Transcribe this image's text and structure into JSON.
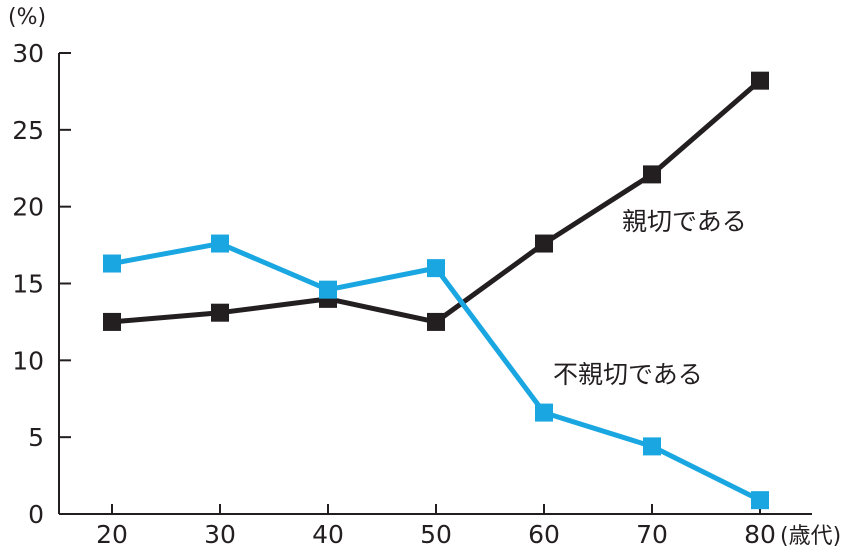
{
  "chart_data": {
    "type": "line",
    "y_unit": "(%)",
    "x_unit": "(歳代)",
    "x": [
      20,
      30,
      40,
      50,
      60,
      70,
      80
    ],
    "ylim": [
      0,
      30
    ],
    "yticks": [
      0,
      5,
      10,
      15,
      20,
      25,
      30
    ],
    "grid": false,
    "series": [
      {
        "name": "親切である",
        "color": "#231f20",
        "values": [
          12.5,
          13.1,
          14.0,
          12.5,
          17.6,
          22.1,
          28.2
        ]
      },
      {
        "name": "不親切である",
        "color": "#1aa7e1",
        "values": [
          16.3,
          17.6,
          14.6,
          16.0,
          6.6,
          4.4,
          0.9
        ]
      }
    ]
  }
}
